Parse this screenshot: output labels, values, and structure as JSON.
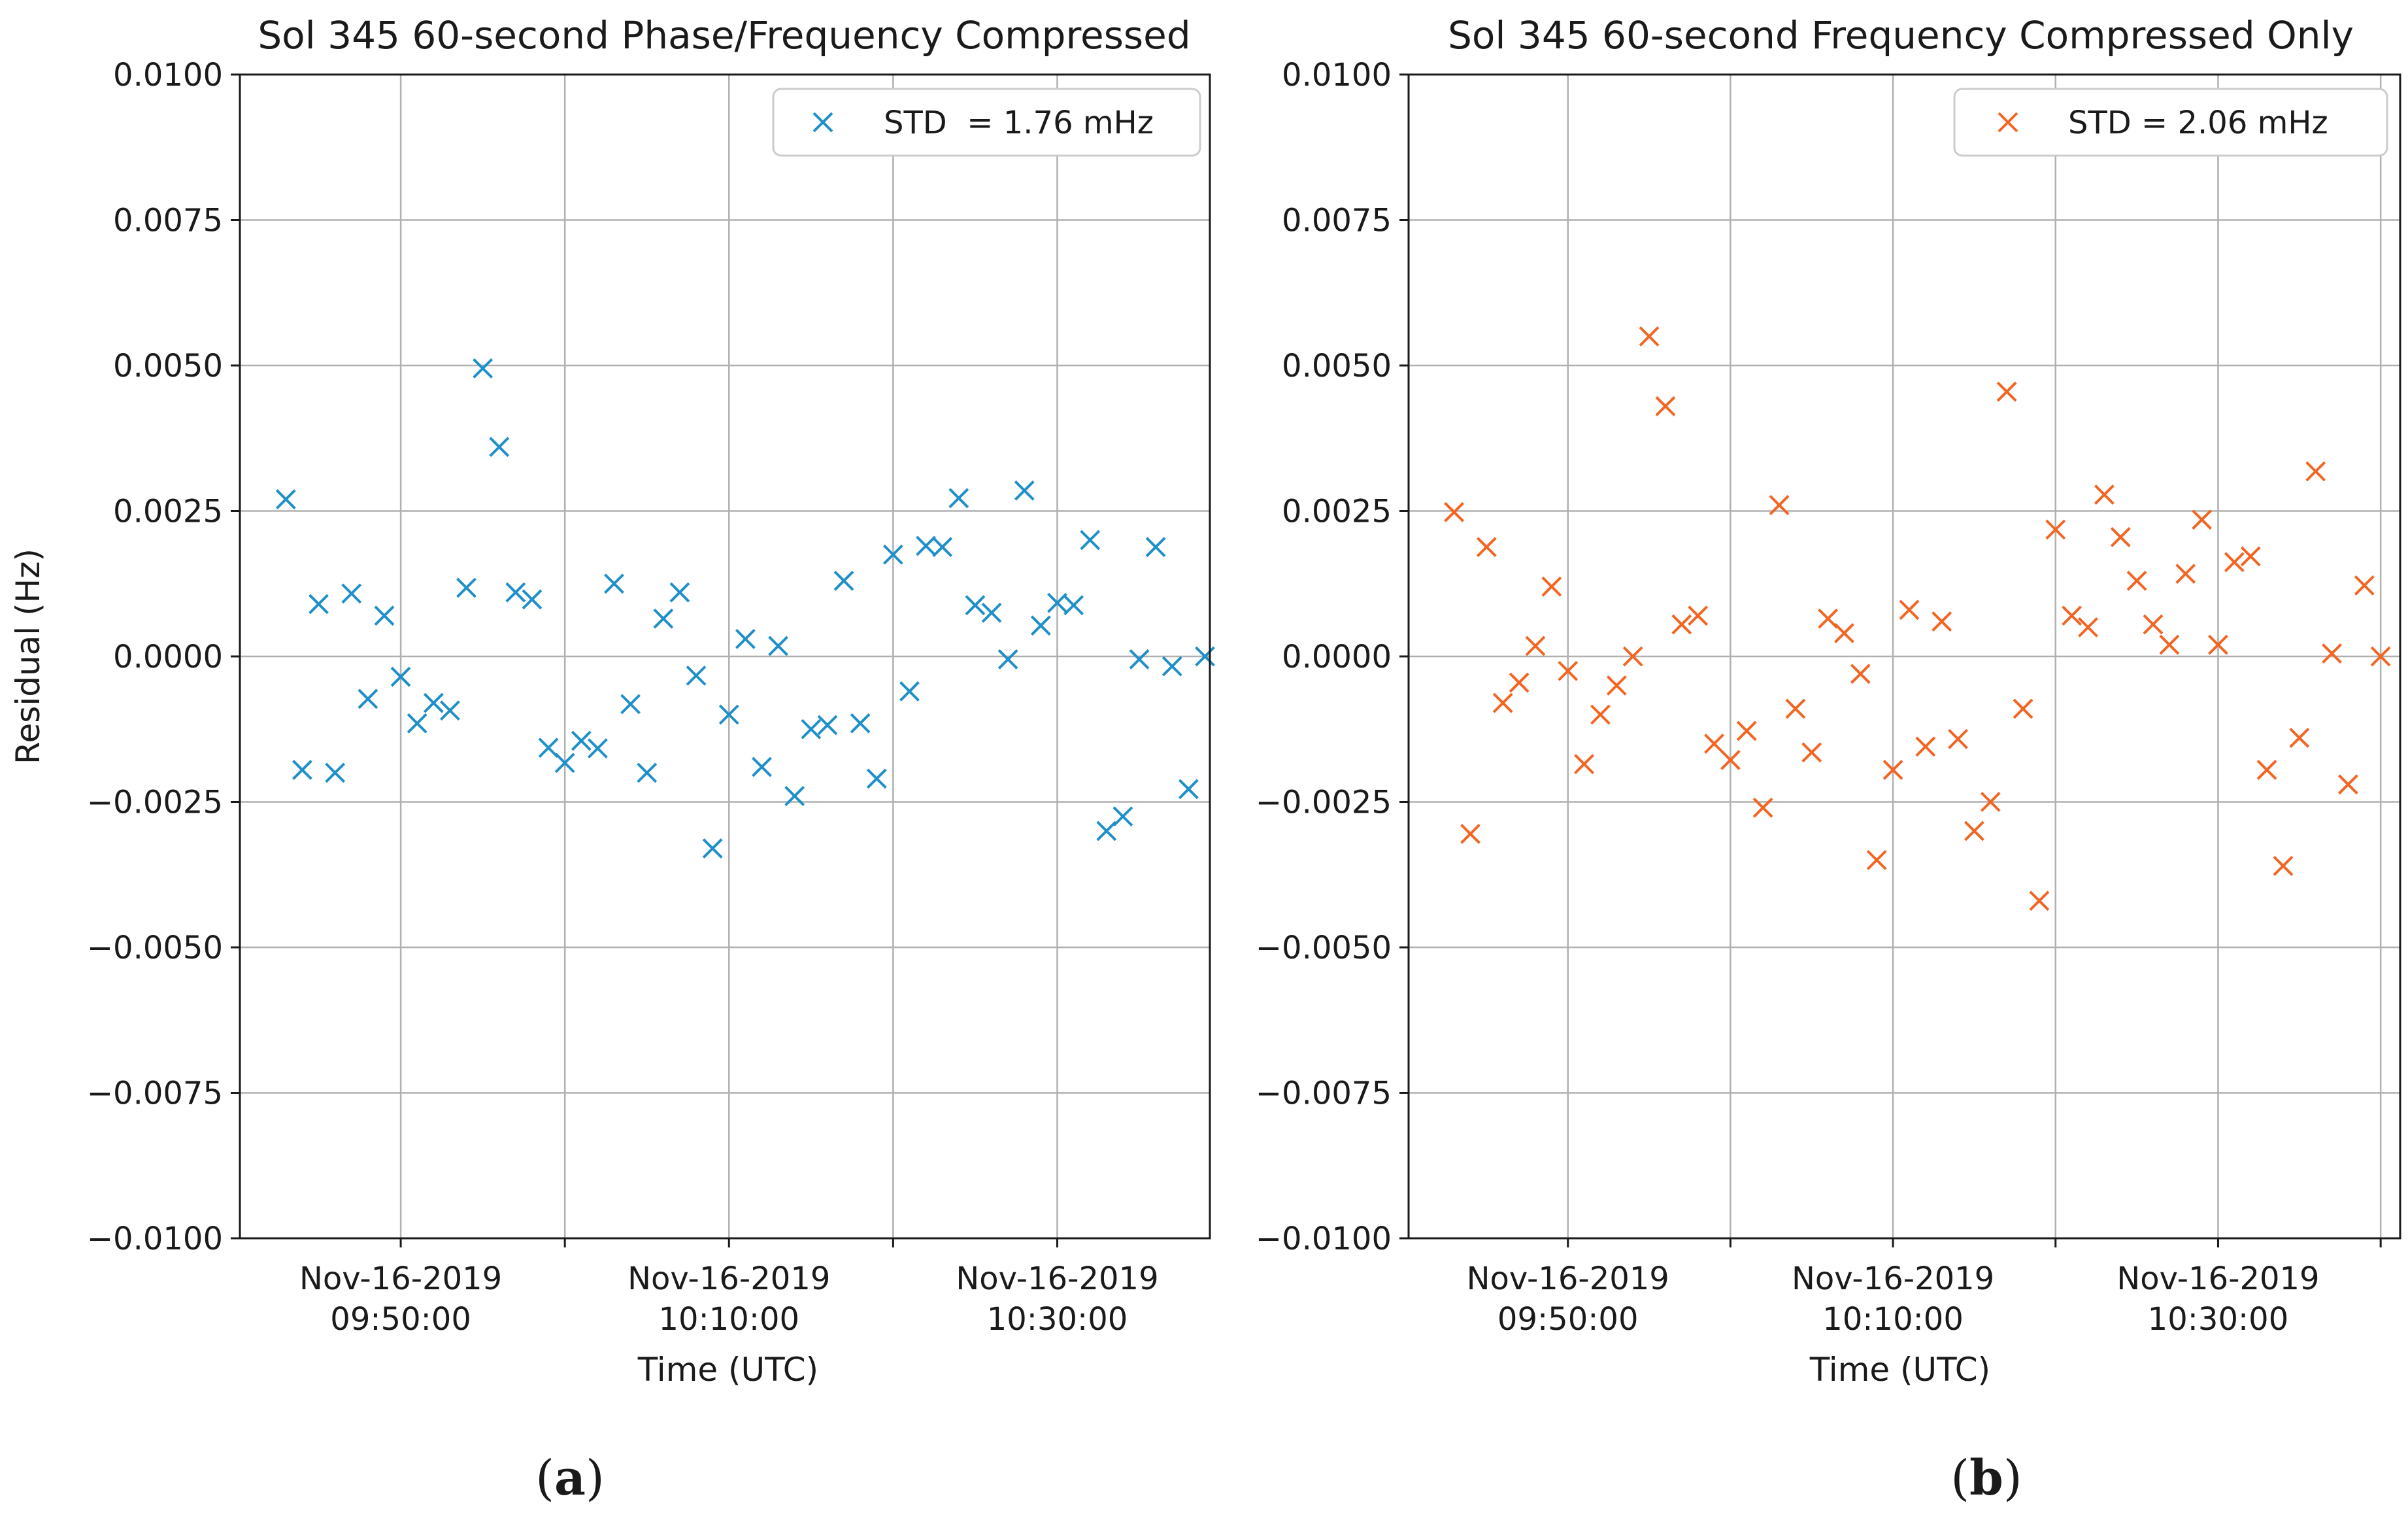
{
  "figure": {
    "captions": [
      "a",
      "b"
    ]
  },
  "chart_data": [
    {
      "type": "scatter",
      "title": "Sol 345 60-second Phase/Frequency Compressed",
      "xlabel": "Time (UTC)",
      "ylabel": "Residual (Hz)",
      "xlim_minutes_after_0900": [
        40.2,
        99.3
      ],
      "ylim": [
        -0.01,
        0.01
      ],
      "yticks": [
        0.01,
        0.0075,
        0.005,
        0.0025,
        0.0,
        -0.0025,
        -0.005,
        -0.0075,
        -0.01
      ],
      "ytick_labels": [
        "0.0100",
        "0.0075",
        "0.0050",
        "0.0025",
        "0.0000",
        "−0.0025",
        "−0.0050",
        "−0.0075",
        "−0.0100"
      ],
      "xticks_minutes_after_0900": [
        50,
        60,
        70,
        80,
        90,
        100
      ],
      "xtick_labels": [
        {
          "minute": 50,
          "date": "Nov-16-2019",
          "time": "09:50:00"
        },
        {
          "minute": 70,
          "date": "Nov-16-2019",
          "time": "10:10:00"
        },
        {
          "minute": 90,
          "date": "Nov-16-2019",
          "time": "10:30:00"
        }
      ],
      "grid": true,
      "legend": {
        "label": "STD  = 1.76 mHz",
        "position": "top-right"
      },
      "marker": "x",
      "color": "#1f8fca",
      "series": [
        {
          "name": "STD  = 1.76 mHz",
          "x_minutes_after_0900": [
            43,
            44,
            45,
            46,
            47,
            48,
            49,
            50,
            51,
            52,
            53,
            54,
            55,
            56,
            57,
            58,
            59,
            60,
            61,
            62,
            63,
            64,
            65,
            66,
            67,
            68,
            69,
            70,
            71,
            72,
            73,
            74,
            75,
            76,
            77,
            78,
            79,
            80,
            81,
            82,
            83,
            84,
            85,
            86,
            87,
            88,
            89,
            90,
            91,
            92,
            93,
            94,
            95,
            96,
            97,
            98,
            99
          ],
          "y": [
            0.0027,
            -0.00195,
            0.0009,
            -0.002,
            0.00108,
            -0.00073,
            0.0007,
            -0.00035,
            -0.00115,
            -0.0008,
            -0.00093,
            0.00118,
            0.00495,
            0.0036,
            0.0011,
            0.00098,
            -0.00157,
            -0.00183,
            -0.00145,
            -0.00158,
            0.00125,
            -0.00082,
            -0.002,
            0.00065,
            0.0011,
            -0.00033,
            -0.0033,
            -0.001,
            0.0003,
            -0.0019,
            0.00018,
            -0.0024,
            -0.00125,
            -0.00118,
            0.0013,
            -0.00115,
            -0.0021,
            0.00175,
            -0.0006,
            0.0019,
            0.00188,
            0.00272,
            0.00088,
            0.00075,
            -5e-05,
            0.00285,
            0.00053,
            0.00092,
            0.00088,
            0.002,
            -0.003,
            -0.00275,
            -5e-05,
            0.00188,
            -0.00017,
            -0.00228,
            0.0
          ]
        }
      ]
    },
    {
      "type": "scatter",
      "title": "Sol 345 60-second Frequency Compressed Only",
      "xlabel": "Time (UTC)",
      "ylabel": "",
      "xlim_minutes_after_0900": [
        40.2,
        101.2
      ],
      "ylim": [
        -0.01,
        0.01
      ],
      "yticks": [
        0.01,
        0.0075,
        0.005,
        0.0025,
        0.0,
        -0.0025,
        -0.005,
        -0.0075,
        -0.01
      ],
      "ytick_labels": [
        "0.0100",
        "0.0075",
        "0.0050",
        "0.0025",
        "0.0000",
        "−0.0025",
        "−0.0050",
        "−0.0075",
        "−0.0100"
      ],
      "xticks_minutes_after_0900": [
        50,
        60,
        70,
        80,
        90,
        100
      ],
      "xtick_labels": [
        {
          "minute": 50,
          "date": "Nov-16-2019",
          "time": "09:50:00"
        },
        {
          "minute": 70,
          "date": "Nov-16-2019",
          "time": "10:10:00"
        },
        {
          "minute": 90,
          "date": "Nov-16-2019",
          "time": "10:30:00"
        }
      ],
      "grid": true,
      "legend": {
        "label": "STD = 2.06 mHz",
        "position": "top-right"
      },
      "marker": "x",
      "color": "#f26522",
      "series": [
        {
          "name": "STD = 2.06 mHz",
          "x_minutes_after_0900": [
            43,
            44,
            45,
            46,
            47,
            48,
            49,
            50,
            51,
            52,
            53,
            54,
            55,
            56,
            57,
            58,
            59,
            60,
            61,
            62,
            63,
            64,
            65,
            66,
            67,
            68,
            69,
            70,
            71,
            72,
            73,
            74,
            75,
            76,
            77,
            78,
            79,
            80,
            81,
            82,
            83,
            84,
            85,
            86,
            87,
            88,
            89,
            90,
            91,
            92,
            93,
            94,
            95,
            96,
            97,
            98,
            99,
            100
          ],
          "y": [
            0.00248,
            -0.00305,
            0.00188,
            -0.0008,
            -0.00045,
            0.00018,
            0.0012,
            -0.00025,
            -0.00185,
            -0.001,
            -0.0005,
            0.0,
            0.0055,
            0.0043,
            0.00055,
            0.0007,
            -0.0015,
            -0.00178,
            -0.00128,
            -0.0026,
            0.0026,
            -0.0009,
            -0.00165,
            0.00065,
            0.0004,
            -0.0003,
            -0.0035,
            -0.00195,
            0.0008,
            -0.00155,
            0.0006,
            -0.00142,
            -0.003,
            -0.0025,
            0.00455,
            -0.0009,
            -0.0042,
            0.00218,
            0.0007,
            0.0005,
            0.00278,
            0.00205,
            0.0013,
            0.00055,
            0.0002,
            0.00142,
            0.00235,
            0.0002,
            0.00162,
            0.00172,
            -0.00195,
            -0.0036,
            -0.0014,
            0.00318,
            5e-05,
            -0.0022,
            0.00122,
            0.0
          ]
        }
      ]
    }
  ]
}
